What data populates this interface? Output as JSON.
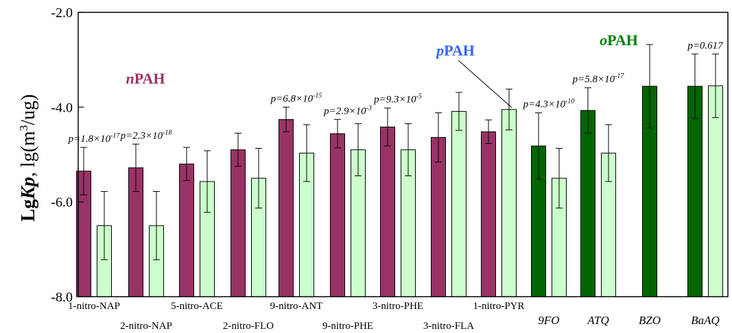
{
  "chart_data": {
    "type": "bar",
    "title": "",
    "ylabel": {
      "prefix": "Lg",
      "bold_italic": "Kp",
      "suffix": ", lg(m",
      "sup": "3",
      "end": "/ug)"
    },
    "ylim": [
      -8,
      -2
    ],
    "yticks": [
      {
        "value": -2,
        "label": "-2.0"
      },
      {
        "value": -4,
        "label": "-4.0"
      },
      {
        "value": -6,
        "label": "-6.0"
      },
      {
        "value": -8,
        "label": "-8.0"
      }
    ],
    "colors": {
      "npah_bar": "#993366",
      "opah_bar": "#006600",
      "pred_bar": "#ccffcc",
      "npah_label": "#993366",
      "ppah_label": "#3366ff",
      "opah_label": "#008000"
    },
    "groups": [
      {
        "category": "1-nitro-NAP",
        "row": 1,
        "italic": false,
        "class": "npah",
        "measured": -5.35,
        "measured_err": 0.5,
        "predicted": -6.5,
        "predicted_err": 0.72,
        "p": {
          "base": "p=1.8×10",
          "exp": "-17"
        }
      },
      {
        "category": "2-nitro-NAP",
        "row": 2,
        "italic": false,
        "class": "npah",
        "measured": -5.28,
        "measured_err": 0.5,
        "predicted": -6.5,
        "predicted_err": 0.72,
        "p": {
          "base": "p=2.3×10",
          "exp": "-18"
        }
      },
      {
        "category": "5-nitro-ACE",
        "row": 1,
        "italic": false,
        "class": "npah",
        "measured": -5.2,
        "measured_err": 0.35,
        "predicted": -5.57,
        "predicted_err": 0.65,
        "p": null
      },
      {
        "category": "2-nitro-FLO",
        "row": 2,
        "italic": false,
        "class": "npah",
        "measured": -4.9,
        "measured_err": 0.35,
        "predicted": -5.5,
        "predicted_err": 0.63,
        "p": null
      },
      {
        "category": "9-nitro-ANT",
        "row": 1,
        "italic": false,
        "class": "npah",
        "measured": -4.26,
        "measured_err": 0.26,
        "predicted": -4.97,
        "predicted_err": 0.6,
        "p": {
          "base": "p=6.8×10",
          "exp": "-15"
        }
      },
      {
        "category": "9-nitro-PHE",
        "row": 2,
        "italic": false,
        "class": "npah",
        "measured": -4.56,
        "measured_err": 0.3,
        "predicted": -4.9,
        "predicted_err": 0.55,
        "p": {
          "base": "p=2.9×10",
          "exp": "-3"
        }
      },
      {
        "category": "3-nitro-PHE",
        "row": 1,
        "italic": false,
        "class": "npah",
        "measured": -4.42,
        "measured_err": 0.4,
        "predicted": -4.9,
        "predicted_err": 0.55,
        "p": {
          "base": "p=9.3×10",
          "exp": "-5"
        }
      },
      {
        "category": "3-nitro-FLA",
        "row": 2,
        "italic": false,
        "class": "npah",
        "measured": -4.64,
        "measured_err": 0.52,
        "predicted": -4.09,
        "predicted_err": 0.4,
        "p": null
      },
      {
        "category": "1-nitro-PYR",
        "row": 1,
        "italic": false,
        "class": "npah",
        "measured": -4.52,
        "measured_err": 0.25,
        "predicted": -4.05,
        "predicted_err": 0.43,
        "p": null
      },
      {
        "category": "9FO",
        "row": 2,
        "italic": true,
        "class": "opah",
        "measured": -4.82,
        "measured_err": 0.7,
        "predicted": -5.5,
        "predicted_err": 0.63,
        "p": {
          "base": "p=4.3×10",
          "exp": "-10"
        }
      },
      {
        "category": "ATQ",
        "row": 2,
        "italic": true,
        "class": "opah",
        "measured": -4.07,
        "measured_err": 0.48,
        "predicted": -4.97,
        "predicted_err": 0.6,
        "p": {
          "base": "p=5.8×10",
          "exp": "-17"
        }
      },
      {
        "category": "BZO",
        "row": 2,
        "italic": true,
        "class": "opah",
        "measured": -3.56,
        "measured_err": 0.88,
        "predicted": null,
        "predicted_err": null,
        "p": null
      },
      {
        "category": "BaAQ",
        "row": 2,
        "italic": true,
        "class": "opah",
        "measured": -3.56,
        "measured_err": 0.68,
        "predicted": -3.55,
        "predicted_err": 0.67,
        "p": {
          "base": "p=0.617",
          "exp": ""
        }
      }
    ],
    "annotations": [
      {
        "prefix": "n",
        "rest": "PAH",
        "color_key": "npah_label"
      },
      {
        "prefix": "p",
        "rest": "PAH",
        "color_key": "ppah_label"
      },
      {
        "prefix": "o",
        "rest": "PAH",
        "color_key": "opah_label"
      }
    ]
  }
}
